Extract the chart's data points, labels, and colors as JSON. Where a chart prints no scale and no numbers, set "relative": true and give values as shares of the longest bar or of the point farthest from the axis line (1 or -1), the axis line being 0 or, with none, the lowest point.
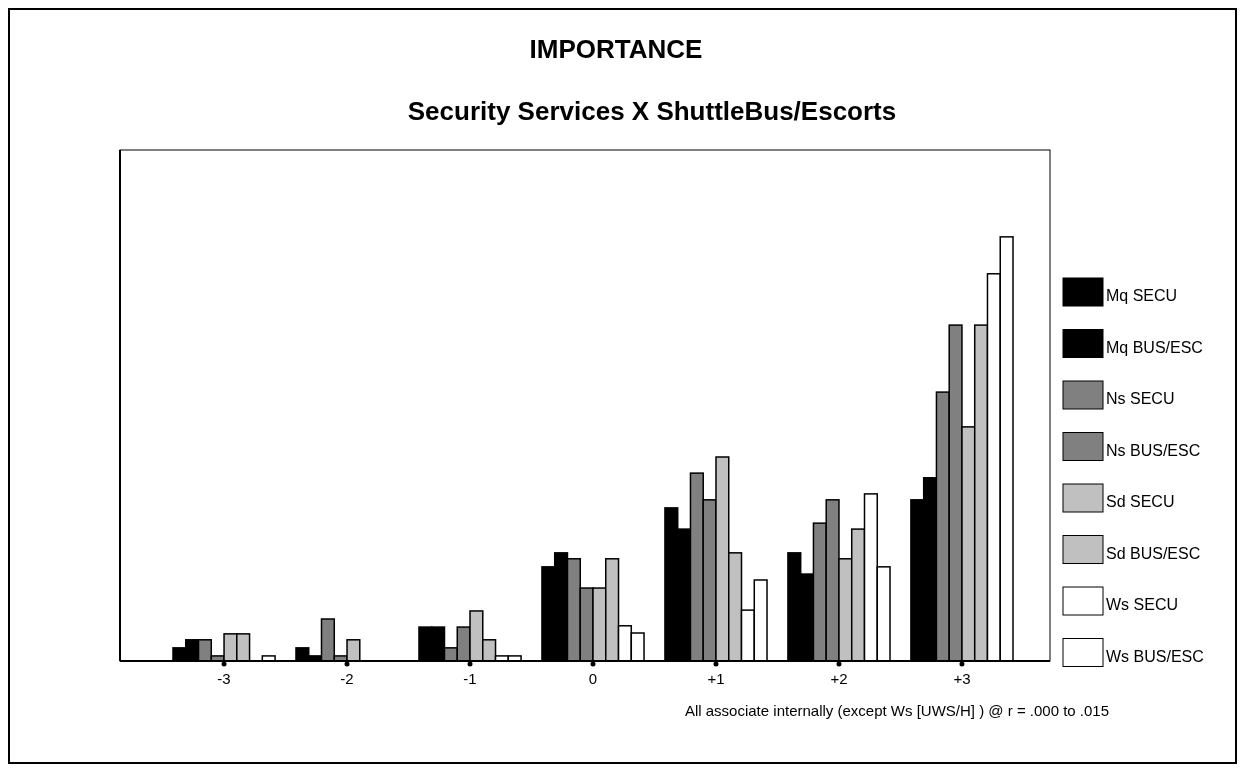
{
  "chart_data": {
    "type": "bar",
    "title": "IMPORTANCE",
    "subtitle": "Security Services X ShuttleBus/Escorts",
    "categories": [
      "-3",
      "-2",
      "-1",
      "0",
      "+1",
      "+2",
      "+3"
    ],
    "relative": true,
    "legend": "right",
    "annotations": [
      "All associate internally  (except Ws [UWS/H] ) @ r = .000 to .015"
    ],
    "series": [
      {
        "name": "Mq SECU",
        "color": "#000000",
        "values": [
          0.031,
          0.031,
          0.08,
          0.222,
          0.361,
          0.255,
          0.38
        ]
      },
      {
        "name": "Mq BUS/ESC",
        "color": "#000000",
        "values": [
          0.05,
          0.012,
          0.08,
          0.255,
          0.311,
          0.205,
          0.432
        ]
      },
      {
        "name": "Ns SECU",
        "color": "#808080",
        "values": [
          0.05,
          0.099,
          0.031,
          0.241,
          0.443,
          0.325,
          0.634
        ]
      },
      {
        "name": "Ns BUS/ESC",
        "color": "#808080",
        "values": [
          0.012,
          0.012,
          0.08,
          0.172,
          0.38,
          0.38,
          0.792
        ]
      },
      {
        "name": "Sd SECU",
        "color": "#c0c0c0",
        "values": [
          0.064,
          0.05,
          0.118,
          0.172,
          0.481,
          0.241,
          0.552
        ]
      },
      {
        "name": "Sd BUS/ESC",
        "color": "#c0c0c0",
        "values": [
          0.064,
          0,
          0.05,
          0.241,
          0.255,
          0.311,
          0.792
        ]
      },
      {
        "name": "Ws SECU",
        "color": "#ffffff",
        "values": [
          0,
          0,
          0.012,
          0.083,
          0.12,
          0.394,
          0.913
        ]
      },
      {
        "name": "Ws BUS/ESC",
        "color": "#ffffff",
        "values": [
          0.012,
          0,
          0.012,
          0.066,
          0.191,
          0.222,
          1
        ]
      }
    ]
  }
}
